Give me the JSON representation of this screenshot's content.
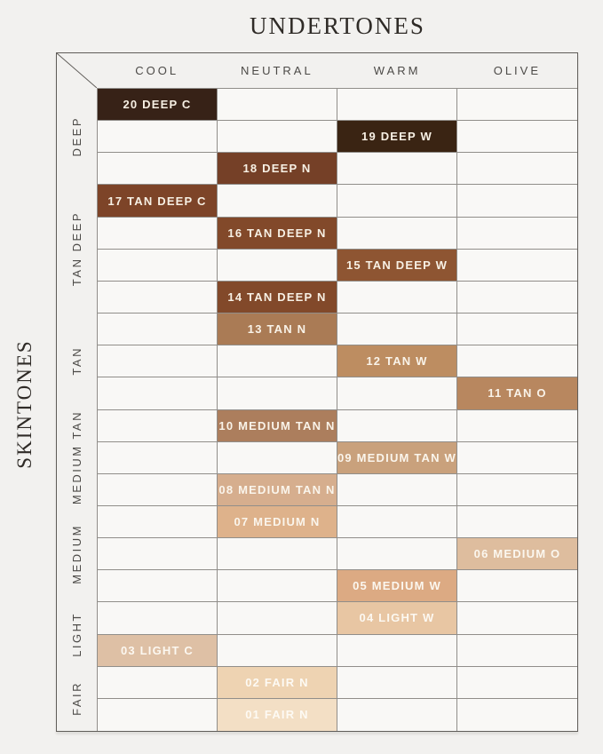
{
  "colors": {
    "page_background": "#f2f1ef",
    "cell_background": "#f9f8f6",
    "outer_border": "#605d59",
    "grid_line": "#918e8a",
    "header_text": "#4c4a47",
    "title_text": "#2f2b27"
  },
  "chart_data": {
    "type": "table",
    "title": "UNDERTONES",
    "x_axis": {
      "label": "UNDERTONES",
      "categories": [
        "COOL",
        "NEUTRAL",
        "WARM",
        "OLIVE"
      ]
    },
    "y_axis": {
      "label": "SKINTONES",
      "groups": [
        {
          "label": "DEEP",
          "rows": 3
        },
        {
          "label": "TAN DEEP",
          "rows": 4
        },
        {
          "label": "TAN",
          "rows": 3
        },
        {
          "label": "MEDIUM TAN",
          "rows": 3
        },
        {
          "label": "MEDIUM",
          "rows": 3
        },
        {
          "label": "LIGHT",
          "rows": 2
        },
        {
          "label": "FAIR",
          "rows": 2
        }
      ]
    },
    "row_count": 20,
    "cells": [
      {
        "row": 1,
        "column": "COOL",
        "shade": "20 DEEP C",
        "skintone": "DEEP",
        "color": "#372217",
        "text_color": "#f7f0e4"
      },
      {
        "row": 2,
        "column": "WARM",
        "shade": "19 DEEP W",
        "skintone": "DEEP",
        "color": "#3a2413",
        "text_color": "#f7f0e4"
      },
      {
        "row": 3,
        "column": "NEUTRAL",
        "shade": "18 DEEP N",
        "skintone": "DEEP",
        "color": "#754027",
        "text_color": "#f7f0e4"
      },
      {
        "row": 4,
        "column": "COOL",
        "shade": "17 TAN DEEP C",
        "skintone": "TAN DEEP",
        "color": "#7d4428",
        "text_color": "#f7f0e4"
      },
      {
        "row": 5,
        "column": "NEUTRAL",
        "shade": "16 TAN DEEP N",
        "skintone": "TAN DEEP",
        "color": "#82492a",
        "text_color": "#f7f0e4"
      },
      {
        "row": 6,
        "column": "WARM",
        "shade": "15 TAN DEEP W",
        "skintone": "TAN DEEP",
        "color": "#8e5532",
        "text_color": "#f7f0e4"
      },
      {
        "row": 7,
        "column": "NEUTRAL",
        "shade": "14 TAN DEEP N",
        "skintone": "TAN DEEP",
        "color": "#82492a",
        "text_color": "#f7f0e4"
      },
      {
        "row": 8,
        "column": "NEUTRAL",
        "shade": "13 TAN N",
        "skintone": "TAN",
        "color": "#aa7b55",
        "text_color": "#f9f3e9"
      },
      {
        "row": 9,
        "column": "WARM",
        "shade": "12 TAN W",
        "skintone": "TAN",
        "color": "#bd8d61",
        "text_color": "#f9f3e9"
      },
      {
        "row": 10,
        "column": "OLIVE",
        "shade": "11 TAN O",
        "skintone": "TAN",
        "color": "#b8875f",
        "text_color": "#f9f3e9"
      },
      {
        "row": 11,
        "column": "NEUTRAL",
        "shade": "10 MEDIUM TAN N",
        "skintone": "MEDIUM TAN",
        "color": "#ac7e5d",
        "text_color": "#f9f3e9"
      },
      {
        "row": 12,
        "column": "WARM",
        "shade": "09 MEDIUM TAN W",
        "skintone": "MEDIUM TAN",
        "color": "#c9a17c",
        "text_color": "#faf5ec"
      },
      {
        "row": 13,
        "column": "NEUTRAL",
        "shade": "08 MEDIUM TAN N",
        "skintone": "MEDIUM TAN",
        "color": "#d6ae8e",
        "text_color": "#faf5ec"
      },
      {
        "row": 14,
        "column": "NEUTRAL",
        "shade": "07 MEDIUM N",
        "skintone": "MEDIUM",
        "color": "#deb28b",
        "text_color": "#faf5ec"
      },
      {
        "row": 15,
        "column": "OLIVE",
        "shade": "06 MEDIUM O",
        "skintone": "MEDIUM",
        "color": "#debd9e",
        "text_color": "#fbf7ef"
      },
      {
        "row": 16,
        "column": "WARM",
        "shade": "05 MEDIUM W",
        "skintone": "MEDIUM",
        "color": "#dcaa83",
        "text_color": "#fbf7ef"
      },
      {
        "row": 17,
        "column": "WARM",
        "shade": "04 LIGHT W",
        "skintone": "LIGHT",
        "color": "#e8c6a3",
        "text_color": "#fcf8f1"
      },
      {
        "row": 18,
        "column": "COOL",
        "shade": "03 LIGHT C",
        "skintone": "LIGHT",
        "color": "#dec0a5",
        "text_color": "#fcf8f1"
      },
      {
        "row": 19,
        "column": "NEUTRAL",
        "shade": "02 FAIR N",
        "skintone": "FAIR",
        "color": "#eed3b2",
        "text_color": "#fdfaf4"
      },
      {
        "row": 20,
        "column": "NEUTRAL",
        "shade": "01 FAIR N",
        "skintone": "FAIR",
        "color": "#f3dfc5",
        "text_color": "#fdfaf4"
      }
    ]
  }
}
